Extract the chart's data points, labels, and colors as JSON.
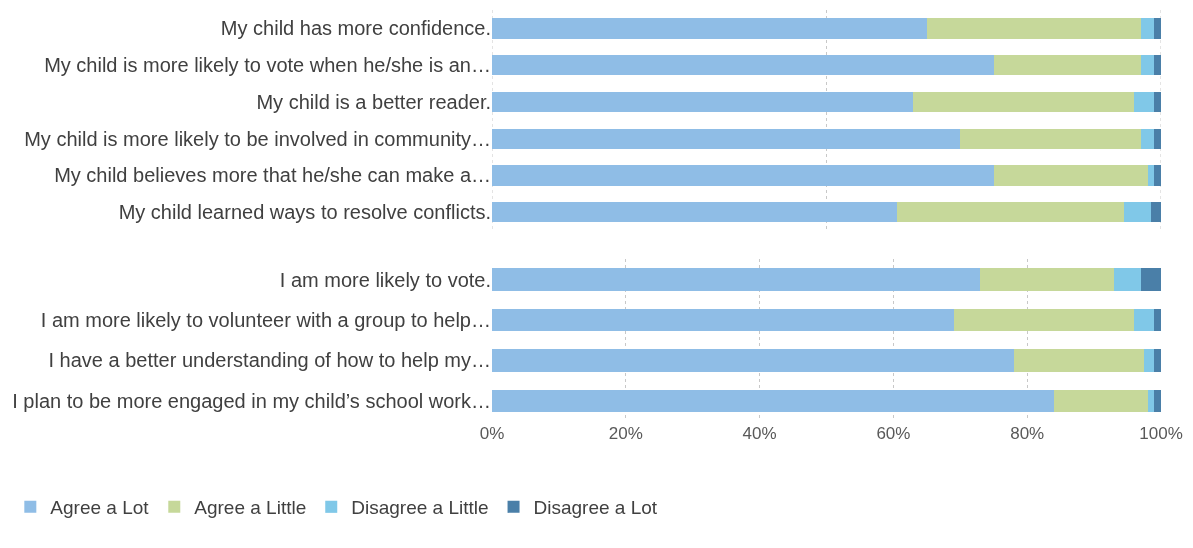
{
  "chart_data": [
    {
      "type": "bar",
      "orientation": "horizontal",
      "stacked": true,
      "tick_labels": "y",
      "legend": false,
      "ref_lines": [
        {
          "axis": "x",
          "value": 0,
          "color": "#c8c8c8",
          "line_style": "dotted"
        },
        {
          "axis": "x",
          "value": 50,
          "color": "#c8c8c8",
          "line_style": "dotted"
        },
        {
          "axis": "x",
          "value": 100,
          "color": "#c8c8c8",
          "line_style": "dotted"
        }
      ],
      "categories": [
        "My child has more confidence.",
        "My child is more likely to vote when he/she is an…",
        "My child is a better reader.",
        "My child is more likely to be involved in community…",
        "My child believes more that he/she can make a…",
        "My child learned ways to resolve conflicts."
      ],
      "xlim": [
        0,
        100
      ],
      "series": [
        {
          "color": "#8fbde6",
          "values": [
            65,
            75,
            63,
            70,
            75,
            60.5
          ]
        },
        {
          "color": "#c6d89a",
          "values": [
            32,
            22,
            33,
            27,
            23,
            34
          ]
        },
        {
          "color": "#80c8e8",
          "values": [
            2,
            2,
            3,
            2,
            1,
            4
          ]
        },
        {
          "color": "#4a7fa8",
          "values": [
            1,
            1,
            1,
            1,
            1,
            1.5
          ]
        }
      ]
    },
    {
      "type": "bar",
      "orientation": "horizontal",
      "stacked": true,
      "grid": "x",
      "legend": "bottom",
      "categories": [
        "I am more likely to vote.",
        "I am more likely to volunteer with a group to help…",
        "I have a better understanding of how to help my…",
        "I plan to be more engaged in my child’s school work…"
      ],
      "xlim": [
        0,
        100
      ],
      "xticks": [
        {
          "value": 0,
          "label": "0%"
        },
        {
          "value": 20,
          "label": "20%"
        },
        {
          "value": 40,
          "label": "40%"
        },
        {
          "value": 60,
          "label": "60%"
        },
        {
          "value": 80,
          "label": "80%"
        },
        {
          "value": 100,
          "label": "100%"
        }
      ],
      "series": [
        {
          "name": "Agree a Lot",
          "color": "#8fbde6",
          "values": [
            73,
            69,
            78,
            84
          ]
        },
        {
          "name": "Agree a Little",
          "color": "#c6d89a",
          "values": [
            20,
            27,
            19.5,
            14
          ]
        },
        {
          "name": "Disagree a Little",
          "color": "#80c8e8",
          "values": [
            4,
            3,
            1.5,
            1
          ]
        },
        {
          "name": "Disagree a Lot",
          "color": "#4a7fa8",
          "values": [
            3,
            1,
            1,
            1
          ]
        }
      ]
    }
  ]
}
